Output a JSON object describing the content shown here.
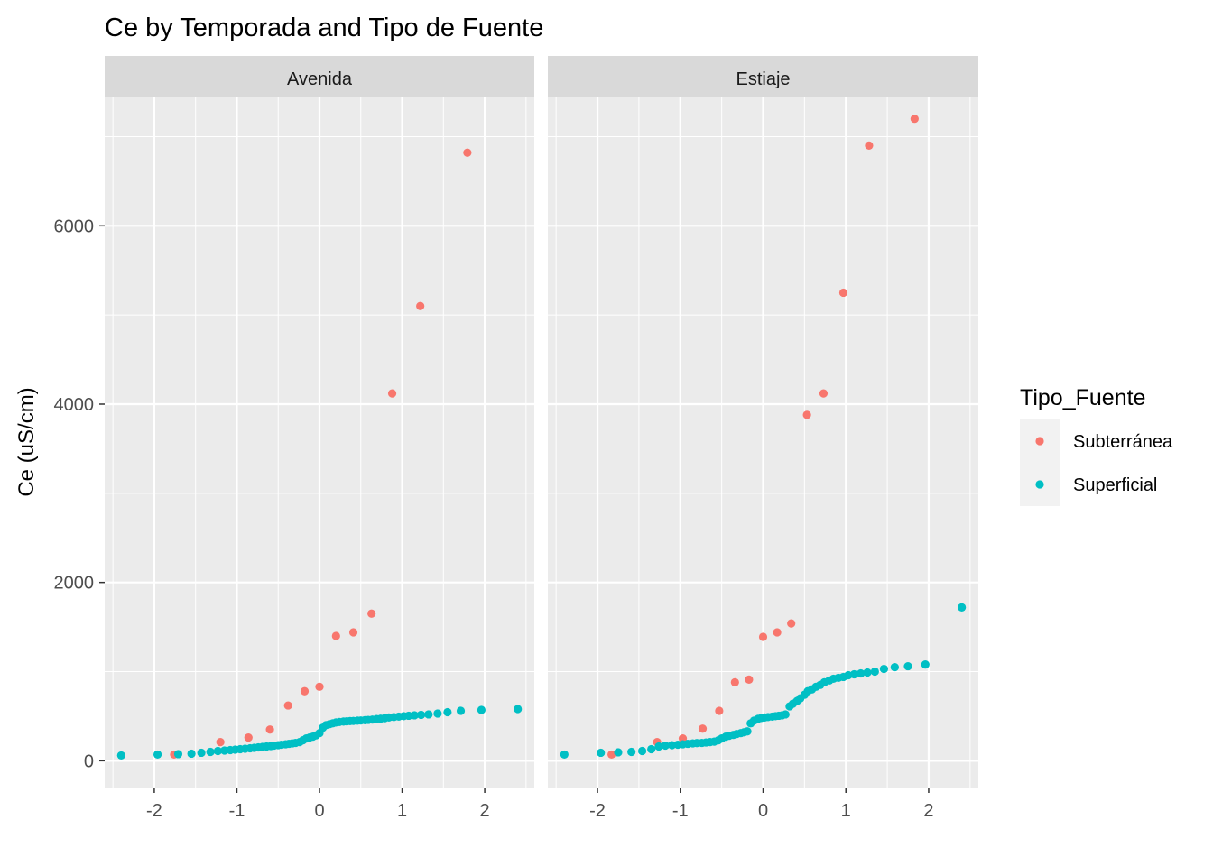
{
  "chart_data": {
    "type": "scatter",
    "title": "Ce by Temporada and Tipo de Fuente",
    "xlabel": "",
    "ylabel": "Ce (uS/cm)",
    "xlim": [
      -2.6,
      2.6
    ],
    "ylim": [
      -300,
      7450
    ],
    "x_ticks": [
      -2,
      -1,
      0,
      1,
      2
    ],
    "x_tick_labels": [
      "-2",
      "-1",
      "0",
      "1",
      "2"
    ],
    "y_ticks": [
      0,
      2000,
      4000,
      6000
    ],
    "y_tick_labels": [
      "0",
      "2000",
      "4000",
      "6000"
    ],
    "grid": true,
    "legend": {
      "title": "Tipo_Fuente",
      "position": "right",
      "entries": [
        {
          "label": "Subterránea",
          "color": "#F8766D"
        },
        {
          "label": "Superficial",
          "color": "#00BFC4"
        }
      ]
    },
    "facets": [
      {
        "label": "Avenida",
        "series": [
          {
            "name": "Subterránea",
            "color": "#F8766D",
            "points": [
              [
                -1.76,
                70
              ],
              [
                -1.2,
                210
              ],
              [
                -0.86,
                260
              ],
              [
                -0.6,
                350
              ],
              [
                -0.38,
                620
              ],
              [
                -0.18,
                780
              ],
              [
                0.0,
                830
              ],
              [
                0.2,
                1400
              ],
              [
                0.41,
                1440
              ],
              [
                0.63,
                1650
              ],
              [
                0.88,
                4120
              ],
              [
                1.22,
                5100
              ],
              [
                1.79,
                6820
              ]
            ]
          },
          {
            "name": "Superficial",
            "color": "#00BFC4",
            "points": [
              [
                -2.4,
                60
              ],
              [
                -1.96,
                70
              ],
              [
                -1.71,
                75
              ],
              [
                -1.55,
                80
              ],
              [
                -1.43,
                90
              ],
              [
                -1.32,
                100
              ],
              [
                -1.23,
                110
              ],
              [
                -1.15,
                115
              ],
              [
                -1.08,
                120
              ],
              [
                -1.02,
                125
              ],
              [
                -0.96,
                130
              ],
              [
                -0.9,
                135
              ],
              [
                -0.84,
                140
              ],
              [
                -0.79,
                145
              ],
              [
                -0.74,
                150
              ],
              [
                -0.69,
                155
              ],
              [
                -0.64,
                160
              ],
              [
                -0.59,
                165
              ],
              [
                -0.55,
                170
              ],
              [
                -0.5,
                175
              ],
              [
                -0.46,
                180
              ],
              [
                -0.41,
                185
              ],
              [
                -0.37,
                190
              ],
              [
                -0.33,
                195
              ],
              [
                -0.29,
                200
              ],
              [
                -0.24,
                210
              ],
              [
                -0.2,
                230
              ],
              [
                -0.16,
                250
              ],
              [
                -0.12,
                260
              ],
              [
                -0.08,
                270
              ],
              [
                -0.04,
                285
              ],
              [
                0.0,
                310
              ],
              [
                0.04,
                370
              ],
              [
                0.08,
                400
              ],
              [
                0.12,
                410
              ],
              [
                0.16,
                420
              ],
              [
                0.2,
                430
              ],
              [
                0.24,
                435
              ],
              [
                0.29,
                440
              ],
              [
                0.33,
                442
              ],
              [
                0.37,
                445
              ],
              [
                0.41,
                447
              ],
              [
                0.46,
                450
              ],
              [
                0.5,
                452
              ],
              [
                0.55,
                455
              ],
              [
                0.59,
                458
              ],
              [
                0.64,
                462
              ],
              [
                0.69,
                468
              ],
              [
                0.74,
                472
              ],
              [
                0.79,
                478
              ],
              [
                0.84,
                485
              ],
              [
                0.9,
                490
              ],
              [
                0.96,
                495
              ],
              [
                1.02,
                500
              ],
              [
                1.08,
                505
              ],
              [
                1.15,
                510
              ],
              [
                1.23,
                515
              ],
              [
                1.32,
                520
              ],
              [
                1.43,
                530
              ],
              [
                1.55,
                545
              ],
              [
                1.71,
                560
              ],
              [
                1.96,
                570
              ],
              [
                2.4,
                580
              ]
            ]
          }
        ]
      },
      {
        "label": "Estiaje",
        "series": [
          {
            "name": "Subterránea",
            "color": "#F8766D",
            "points": [
              [
                -1.83,
                70
              ],
              [
                -1.28,
                210
              ],
              [
                -0.97,
                250
              ],
              [
                -0.73,
                360
              ],
              [
                -0.53,
                560
              ],
              [
                -0.34,
                880
              ],
              [
                -0.17,
                910
              ],
              [
                0.0,
                1390
              ],
              [
                0.17,
                1440
              ],
              [
                0.34,
                1540
              ],
              [
                0.53,
                3880
              ],
              [
                0.73,
                4120
              ],
              [
                0.97,
                5250
              ],
              [
                1.28,
                6900
              ],
              [
                1.83,
                7200
              ]
            ]
          },
          {
            "name": "Superficial",
            "color": "#00BFC4",
            "points": [
              [
                -2.4,
                70
              ],
              [
                -1.96,
                90
              ],
              [
                -1.75,
                95
              ],
              [
                -1.59,
                100
              ],
              [
                -1.46,
                110
              ],
              [
                -1.35,
                130
              ],
              [
                -1.26,
                160
              ],
              [
                -1.18,
                170
              ],
              [
                -1.1,
                175
              ],
              [
                -1.03,
                180
              ],
              [
                -0.97,
                185
              ],
              [
                -0.91,
                190
              ],
              [
                -0.85,
                195
              ],
              [
                -0.8,
                198
              ],
              [
                -0.74,
                200
              ],
              [
                -0.69,
                205
              ],
              [
                -0.64,
                210
              ],
              [
                -0.59,
                215
              ],
              [
                -0.54,
                230
              ],
              [
                -0.5,
                250
              ],
              [
                -0.45,
                270
              ],
              [
                -0.41,
                280
              ],
              [
                -0.36,
                290
              ],
              [
                -0.32,
                300
              ],
              [
                -0.27,
                310
              ],
              [
                -0.23,
                320
              ],
              [
                -0.19,
                330
              ],
              [
                -0.15,
                420
              ],
              [
                -0.11,
                450
              ],
              [
                -0.06,
                470
              ],
              [
                -0.02,
                480
              ],
              [
                0.02,
                485
              ],
              [
                0.06,
                490
              ],
              [
                0.11,
                495
              ],
              [
                0.15,
                500
              ],
              [
                0.19,
                505
              ],
              [
                0.23,
                510
              ],
              [
                0.27,
                520
              ],
              [
                0.32,
                610
              ],
              [
                0.36,
                640
              ],
              [
                0.41,
                670
              ],
              [
                0.45,
                700
              ],
              [
                0.5,
                740
              ],
              [
                0.54,
                780
              ],
              [
                0.59,
                800
              ],
              [
                0.64,
                830
              ],
              [
                0.69,
                850
              ],
              [
                0.74,
                880
              ],
              [
                0.8,
                900
              ],
              [
                0.85,
                920
              ],
              [
                0.91,
                930
              ],
              [
                0.97,
                940
              ],
              [
                1.03,
                960
              ],
              [
                1.1,
                970
              ],
              [
                1.18,
                980
              ],
              [
                1.26,
                990
              ],
              [
                1.35,
                1000
              ],
              [
                1.46,
                1030
              ],
              [
                1.59,
                1050
              ],
              [
                1.75,
                1060
              ],
              [
                1.96,
                1080
              ],
              [
                2.4,
                1720
              ]
            ]
          }
        ]
      }
    ]
  }
}
